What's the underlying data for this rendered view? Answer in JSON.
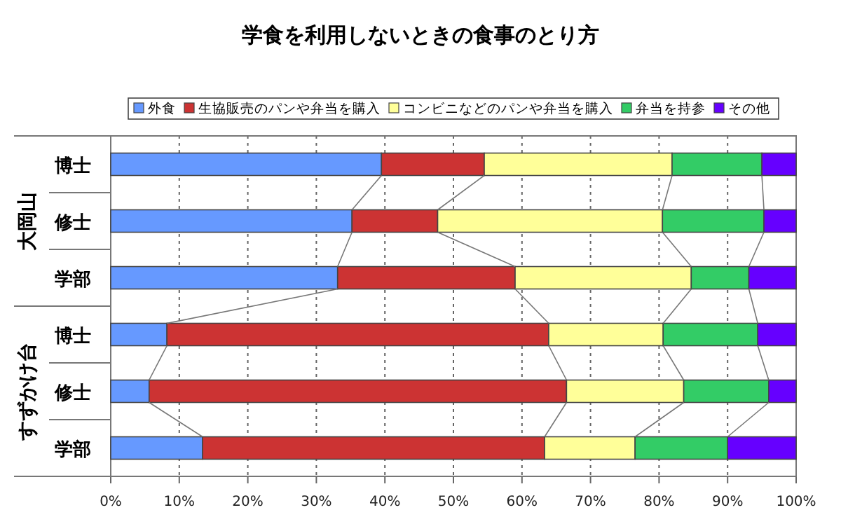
{
  "chart_data": {
    "type": "bar",
    "orientation": "horizontal",
    "stacked": true,
    "title": "学食を利用しないときの食事のとり方",
    "categories": [
      "博士",
      "修士",
      "学部",
      "博士",
      "修士",
      "学部"
    ],
    "annotations": [
      "大岡山",
      "すずかけ台"
    ],
    "series": [
      {
        "name": "外食",
        "color": "#6699ff",
        "values": [
          39.5,
          35.2,
          33.1,
          8.2,
          5.6,
          13.4
        ]
      },
      {
        "name": "生協販売のパンや弁当を購入",
        "color": "#cc3333",
        "values": [
          15.0,
          12.5,
          25.9,
          55.7,
          60.9,
          49.9
        ]
      },
      {
        "name": "コンビニなどのパンや弁当を購入",
        "color": "#ffff99",
        "values": [
          27.4,
          32.8,
          25.7,
          16.7,
          17.1,
          13.2
        ]
      },
      {
        "name": "弁当を持参",
        "color": "#33cc66",
        "values": [
          13.1,
          14.8,
          8.4,
          13.8,
          12.4,
          13.5
        ]
      },
      {
        "name": "その他",
        "color": "#6600ff",
        "values": [
          5.0,
          4.7,
          6.9,
          5.6,
          4.0,
          10.0
        ]
      }
    ],
    "xlim": [
      0,
      100
    ],
    "xticks": [
      {
        "value": 0,
        "label": "0%"
      },
      {
        "value": 10,
        "label": "10%"
      },
      {
        "value": 20,
        "label": "20%"
      },
      {
        "value": 30,
        "label": "30%"
      },
      {
        "value": 40,
        "label": "40%"
      },
      {
        "value": 50,
        "label": "50%"
      },
      {
        "value": 60,
        "label": "60%"
      },
      {
        "value": 70,
        "label": "70%"
      },
      {
        "value": 80,
        "label": "80%"
      },
      {
        "value": 90,
        "label": "90%"
      },
      {
        "value": 100,
        "label": "100%"
      }
    ],
    "grid": "x",
    "legend": "top"
  }
}
